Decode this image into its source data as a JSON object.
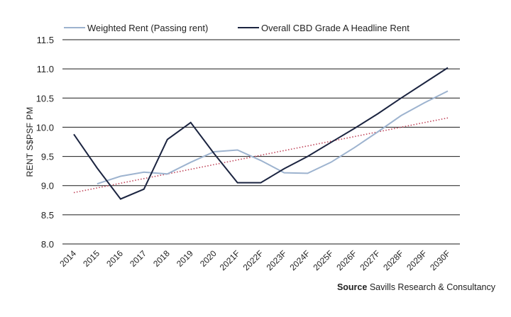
{
  "chart_data": {
    "type": "line",
    "ylabel": "RENT S$PSF PM",
    "ylim": [
      8.0,
      11.5
    ],
    "yticks": [
      "8.0",
      "8.5",
      "9.0",
      "9.5",
      "10.0",
      "10.5",
      "11.0",
      "11.5"
    ],
    "categories": [
      "2014",
      "2015",
      "2016",
      "2017",
      "2018",
      "2019",
      "2020",
      "2021F",
      "2022F",
      "2023F",
      "2024F",
      "2025F",
      "2026F",
      "2027F",
      "2028F",
      "2029F",
      "2030F"
    ],
    "grid": "horizontal",
    "legend_position": "top",
    "series": [
      {
        "name": "Weighted Rent (Passing rent)",
        "color": "#9db3cf",
        "values": [
          null,
          9.03,
          9.16,
          9.23,
          9.2,
          9.4,
          9.58,
          9.61,
          9.43,
          9.22,
          9.21,
          9.4,
          9.65,
          9.92,
          10.2,
          10.42,
          10.62
        ]
      },
      {
        "name": "Overall CBD Grade A Headline Rent",
        "color": "#1b2440",
        "values": [
          9.88,
          9.3,
          8.77,
          8.94,
          9.79,
          10.08,
          9.55,
          9.05,
          9.05,
          9.29,
          9.5,
          9.74,
          9.98,
          10.23,
          10.5,
          10.76,
          11.02
        ]
      },
      {
        "style": "dotted-trend",
        "color": "#c0455a",
        "values": [
          8.88,
          8.96,
          9.04,
          9.12,
          9.2,
          9.28,
          9.36,
          9.44,
          9.52,
          9.6,
          9.68,
          9.76,
          9.84,
          9.92,
          10.0,
          10.08,
          10.16
        ]
      }
    ]
  },
  "source": {
    "label": "Source",
    "text": "Savills Research & Consultancy"
  }
}
